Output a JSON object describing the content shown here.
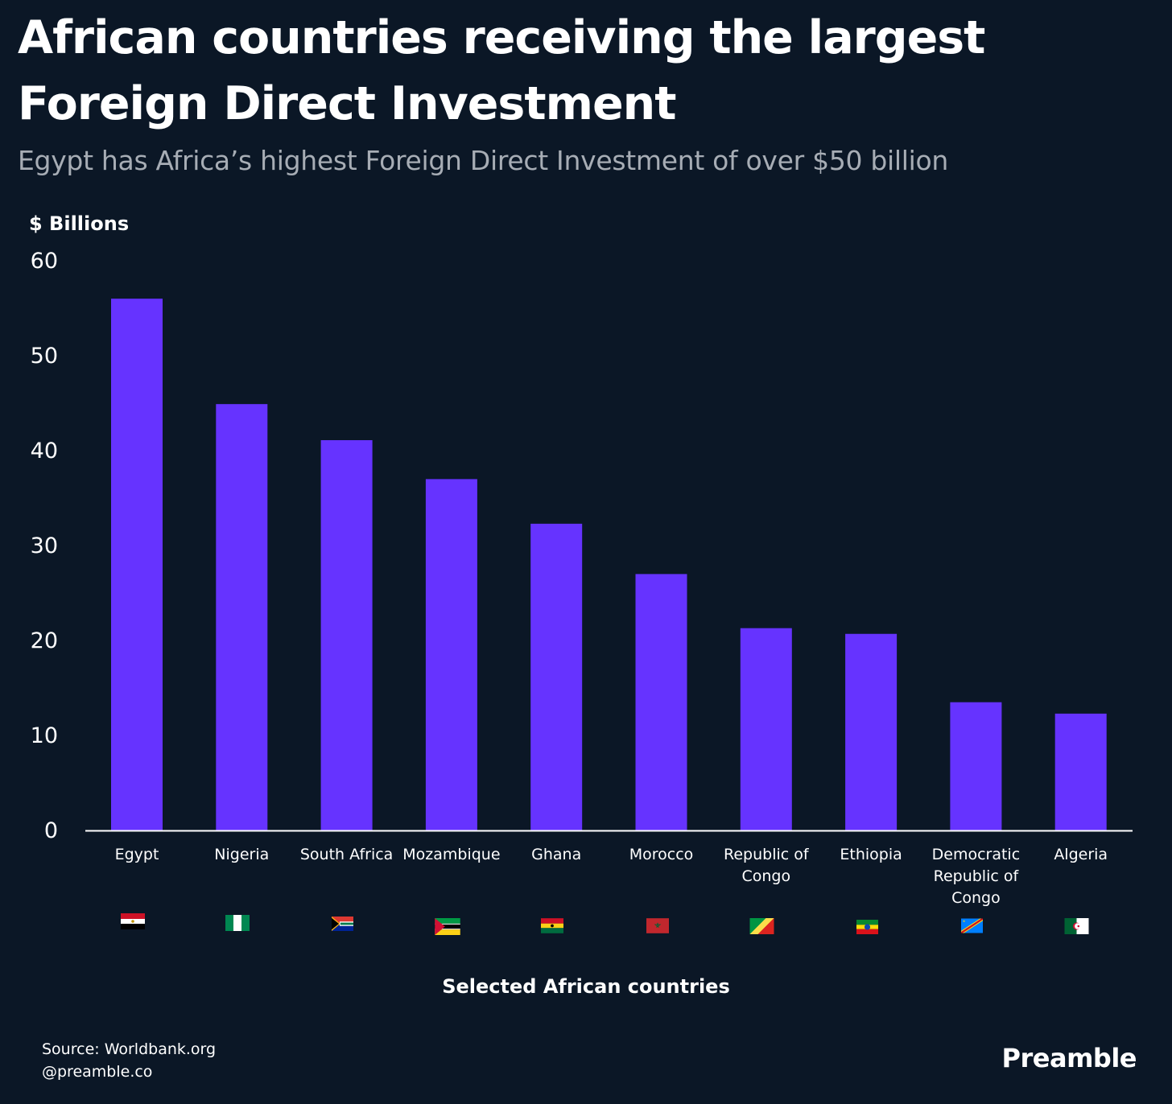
{
  "title": "African countries receiving the largest Foreign Direct Investment",
  "subtitle": "Egypt has Africa’s highest Foreign Direct Investment of over $50 billion",
  "source": [
    "Source: Worldbank.org",
    "@preamble.co"
  ],
  "brand": "Preamble",
  "colors": {
    "background": "#0b1726",
    "bar": "#6633ff",
    "text": "#ffffff",
    "subtitle": "#a7adb5"
  },
  "chart_data": {
    "type": "bar",
    "title": "African countries receiving the largest Foreign Direct Investment",
    "subtitle": "Egypt has Africa’s highest Foreign Direct Investment of over $50 billion",
    "xlabel": "Selected African countries",
    "ylabel": "$ Billions",
    "ylim": [
      0,
      60
    ],
    "yticks": [
      "0",
      "10",
      "20",
      "30",
      "40",
      "50",
      "60"
    ],
    "grid": false,
    "categories": [
      "Egypt",
      "Nigeria",
      "South Africa",
      "Mozambique",
      "Ghana",
      "Morocco",
      "Republic of Congo",
      "Ethiopia",
      "Democratic Republic of Congo",
      "Algeria"
    ],
    "category_label_lines": [
      [
        "Egypt"
      ],
      [
        "Nigeria"
      ],
      [
        "South Africa"
      ],
      [
        "Mozambique"
      ],
      [
        "Ghana"
      ],
      [
        "Morocco"
      ],
      [
        "Republic of",
        "Congo"
      ],
      [
        "Ethiopia"
      ],
      [
        "Democratic",
        "Republic of",
        "Congo"
      ],
      [
        "Algeria"
      ]
    ],
    "flags": [
      "egypt-flag-icon",
      "nigeria-flag-icon",
      "south-africa-flag-icon",
      "mozambique-flag-icon",
      "ghana-flag-icon",
      "morocco-flag-icon",
      "republic-of-congo-flag-icon",
      "ethiopia-flag-icon",
      "dr-congo-flag-icon",
      "algeria-flag-icon"
    ],
    "values": [
      56.0,
      44.9,
      41.1,
      37.0,
      32.3,
      27.0,
      21.3,
      20.7,
      13.5,
      12.3
    ]
  }
}
